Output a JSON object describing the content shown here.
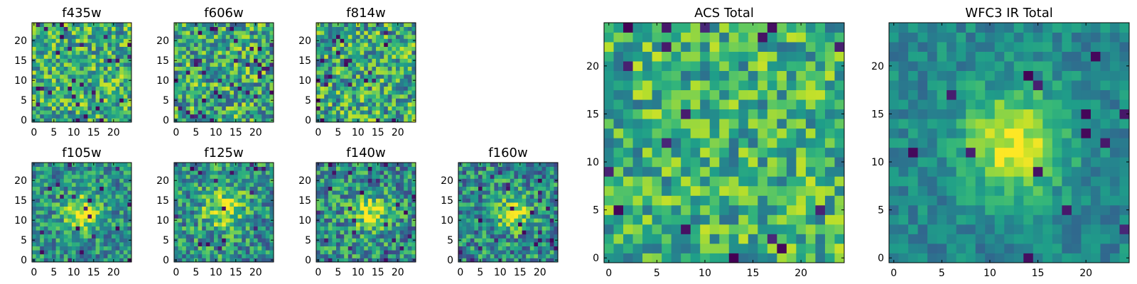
{
  "figure": {
    "background": "#ffffff",
    "colormap": "viridis"
  },
  "chart_data": [
    {
      "type": "heatmap",
      "title": "f435w",
      "grid_size": 25,
      "xticks": [
        0,
        5,
        10,
        15,
        20
      ],
      "yticks": [
        0,
        5,
        10,
        15,
        20
      ],
      "xlim": [
        -0.5,
        24.5
      ],
      "ylim": [
        -0.5,
        24.5
      ],
      "pattern": {
        "kind": "noise",
        "seed": 11,
        "base": 0.62,
        "spread": 0.32,
        "darkSpots": 0.045
      }
    },
    {
      "type": "heatmap",
      "title": "f606w",
      "grid_size": 25,
      "xticks": [
        0,
        5,
        10,
        15,
        20
      ],
      "yticks": [
        0,
        5,
        10,
        15,
        20
      ],
      "xlim": [
        -0.5,
        24.5
      ],
      "ylim": [
        -0.5,
        24.5
      ],
      "pattern": {
        "kind": "noise",
        "seed": 23,
        "base": 0.6,
        "spread": 0.34,
        "darkSpots": 0.05
      }
    },
    {
      "type": "heatmap",
      "title": "f814w",
      "grid_size": 25,
      "xticks": [
        0,
        5,
        10,
        15,
        20
      ],
      "yticks": [
        0,
        5,
        10,
        15,
        20
      ],
      "xlim": [
        -0.5,
        24.5
      ],
      "ylim": [
        -0.5,
        24.5
      ],
      "pattern": {
        "kind": "noise",
        "seed": 37,
        "base": 0.6,
        "spread": 0.34,
        "darkSpots": 0.045
      }
    },
    {
      "type": "heatmap",
      "title": "f105w",
      "grid_size": 25,
      "xticks": [
        0,
        5,
        10,
        15,
        20
      ],
      "yticks": [
        0,
        5,
        10,
        15,
        20
      ],
      "xlim": [
        -0.5,
        24.5
      ],
      "ylim": [
        -0.5,
        24.5
      ],
      "pattern": {
        "kind": "source",
        "seed": 41,
        "base": 0.5,
        "spread": 0.26,
        "peak": 0.45,
        "cx": 12,
        "cy": 12,
        "sigma": 3.2,
        "darkSpots": 0.03
      }
    },
    {
      "type": "heatmap",
      "title": "f125w",
      "grid_size": 25,
      "xticks": [
        0,
        5,
        10,
        15,
        20
      ],
      "yticks": [
        0,
        5,
        10,
        15,
        20
      ],
      "xlim": [
        -0.5,
        24.5
      ],
      "ylim": [
        -0.5,
        24.5
      ],
      "pattern": {
        "kind": "source",
        "seed": 53,
        "base": 0.52,
        "spread": 0.3,
        "peak": 0.4,
        "cx": 12,
        "cy": 13,
        "sigma": 3.4,
        "darkSpots": 0.03
      }
    },
    {
      "type": "heatmap",
      "title": "f140w",
      "grid_size": 25,
      "xticks": [
        0,
        5,
        10,
        15,
        20
      ],
      "yticks": [
        0,
        5,
        10,
        15,
        20
      ],
      "xlim": [
        -0.5,
        24.5
      ],
      "ylim": [
        -0.5,
        24.5
      ],
      "pattern": {
        "kind": "source",
        "seed": 67,
        "base": 0.5,
        "spread": 0.3,
        "peak": 0.42,
        "cx": 13,
        "cy": 12,
        "sigma": 3.2,
        "darkSpots": 0.035
      }
    },
    {
      "type": "heatmap",
      "title": "f160w",
      "grid_size": 25,
      "xticks": [
        0,
        5,
        10,
        15,
        20
      ],
      "yticks": [
        0,
        5,
        10,
        15,
        20
      ],
      "xlim": [
        -0.5,
        24.5
      ],
      "ylim": [
        -0.5,
        24.5
      ],
      "pattern": {
        "kind": "source",
        "seed": 79,
        "base": 0.48,
        "spread": 0.3,
        "peak": 0.4,
        "cx": 13,
        "cy": 12,
        "sigma": 3.0,
        "darkSpots": 0.04
      }
    },
    {
      "type": "heatmap",
      "title": "ACS Total",
      "grid_size": 25,
      "xticks": [
        0,
        5,
        10,
        15,
        20
      ],
      "yticks": [
        0,
        5,
        10,
        15,
        20
      ],
      "xlim": [
        -0.5,
        24.5
      ],
      "ylim": [
        -0.5,
        24.5
      ],
      "pattern": {
        "kind": "noise",
        "seed": 97,
        "base": 0.64,
        "spread": 0.28,
        "darkSpots": 0.035
      }
    },
    {
      "type": "heatmap",
      "title": "WFC3 IR Total",
      "grid_size": 25,
      "xticks": [
        0,
        5,
        10,
        15,
        20
      ],
      "yticks": [
        0,
        5,
        10,
        15,
        20
      ],
      "xlim": [
        -0.5,
        24.5
      ],
      "ylim": [
        -0.5,
        24.5
      ],
      "pattern": {
        "kind": "source",
        "seed": 131,
        "base": 0.46,
        "spread": 0.14,
        "peak": 0.5,
        "cx": 12.5,
        "cy": 12,
        "sigma": 3.8,
        "darkSpots": 0.03
      }
    }
  ]
}
